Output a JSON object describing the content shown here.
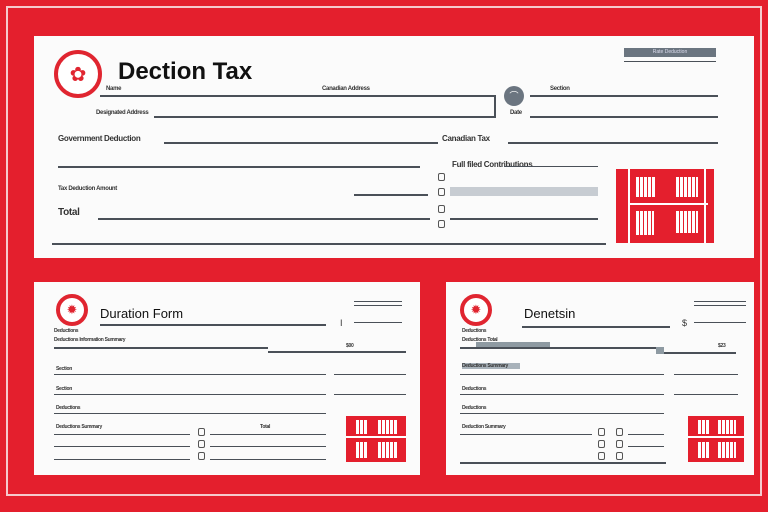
{
  "colors": {
    "accent": "#e41f2d",
    "line": "#4a5058"
  },
  "top_form": {
    "title": "Dection Tax",
    "header_bar": "Rate Deduction",
    "labels": [
      "Name",
      "Canadian Address",
      "Designated Address",
      "Section",
      "Date",
      "Government Deduction",
      "Canadian Tax",
      "Full filed Contributions",
      "Tax Deduction Amount",
      "Total"
    ],
    "icons": [
      "maple-leaf-icon",
      "avatar-icon",
      "building-icon"
    ]
  },
  "left_form": {
    "title": "Duration Form",
    "labels": [
      "Deductions",
      "Deductions Information Summary",
      "$00",
      "Section",
      "Section",
      "Deductions",
      "Deductions Summary",
      "Total"
    ]
  },
  "right_form": {
    "title": "Denetsin",
    "labels": [
      "Deductions",
      "Deductions Total",
      "$23",
      "Deductions Summary",
      "Deductions",
      "Deductions",
      "Deduction Summary"
    ]
  }
}
